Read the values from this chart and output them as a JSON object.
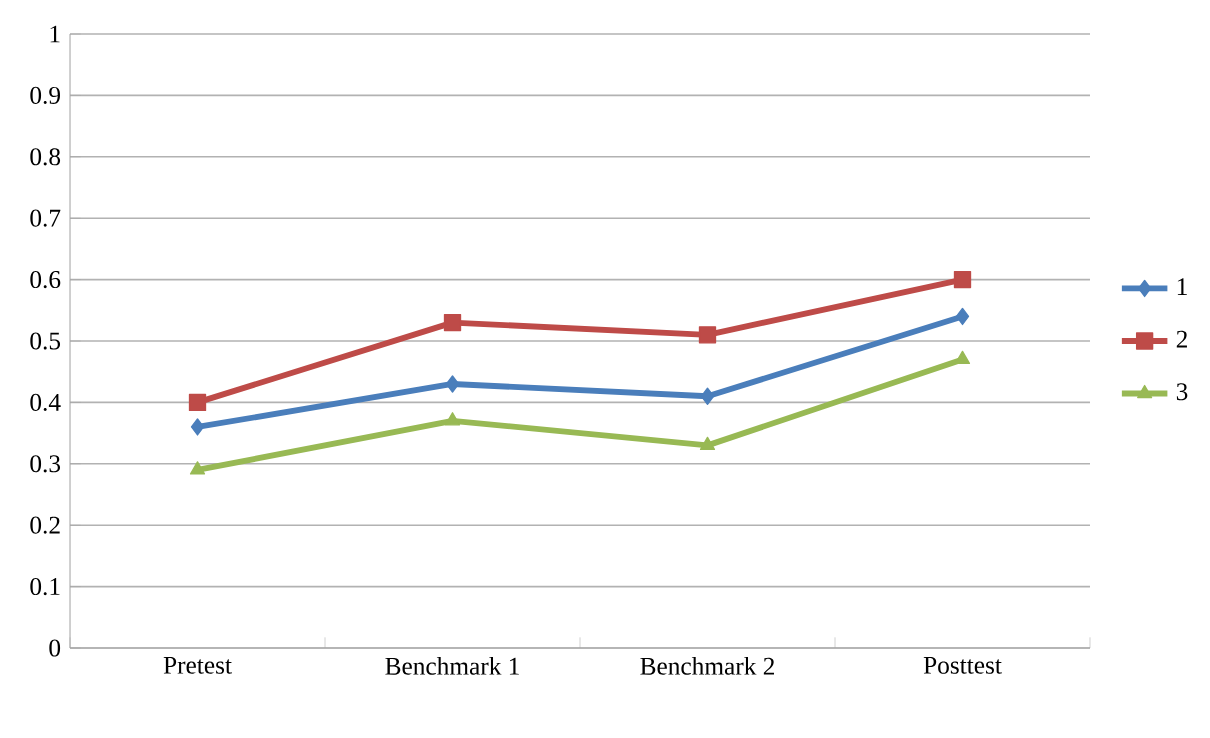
{
  "chart_data": {
    "type": "line",
    "categories": [
      "Pretest",
      "Benchmark 1",
      "Benchmark 2",
      "Posttest"
    ],
    "series": [
      {
        "name": "1",
        "color": "#4a7ebb",
        "marker": "diamond",
        "values": [
          0.36,
          0.43,
          0.41,
          0.54
        ]
      },
      {
        "name": "2",
        "color": "#be4b48",
        "marker": "square",
        "values": [
          0.4,
          0.53,
          0.51,
          0.6
        ]
      },
      {
        "name": "3",
        "color": "#98b954",
        "marker": "triangle",
        "values": [
          0.29,
          0.37,
          0.33,
          0.47
        ]
      }
    ],
    "ylim": [
      0,
      1
    ],
    "yticks": [
      0,
      0.1,
      0.2,
      0.3,
      0.4,
      0.5,
      0.6,
      0.7,
      0.8,
      0.9,
      1
    ],
    "grid": "y",
    "legend": "right",
    "line_style": "solid"
  }
}
